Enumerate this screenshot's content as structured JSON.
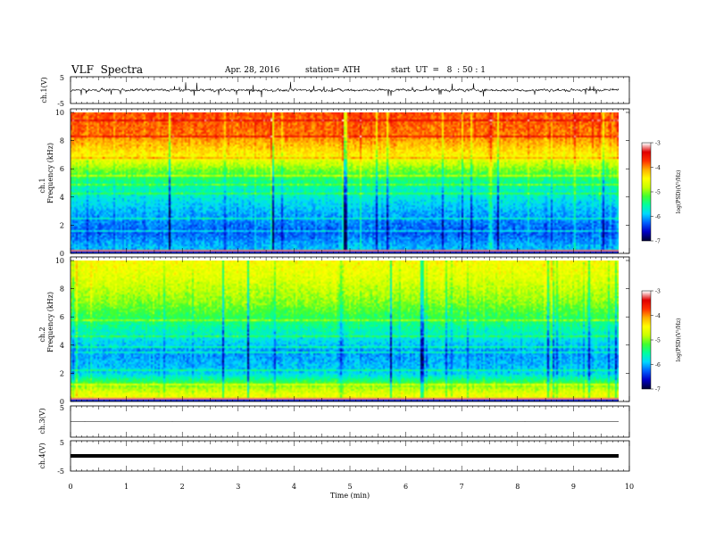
{
  "header": {
    "title": "VLF  Spectra",
    "date": "Apr. 28, 2016",
    "station": "station= ATH",
    "start": "start  UT  =   8  : 50 : 1"
  },
  "colors": {
    "colormap": [
      "#00003a",
      "#0000c8",
      "#0060ff",
      "#00d8ff",
      "#00ffa0",
      "#40ff30",
      "#c8ff00",
      "#ffff00",
      "#ffb000",
      "#ff3000",
      "#e00000",
      "#ffffff"
    ]
  },
  "chart_data": [
    {
      "type": "line",
      "panel": "ch1-waveform",
      "ylabel": "ch.1(V)",
      "ylim": [
        -5,
        5
      ],
      "yticks": [
        "5",
        "-5"
      ],
      "mean": 0.0,
      "amplitude_approx": 1.0
    },
    {
      "type": "heatmap",
      "panel": "ch1-spectrogram",
      "ylabel_top": "ch.1",
      "ylabel": "Frequency  (kHz)",
      "ylim": [
        0,
        10
      ],
      "yticks": [
        "0",
        "2",
        "4",
        "6",
        "8",
        "10"
      ],
      "xlim": [
        0,
        9.83
      ],
      "colorbar": {
        "label": "log(PSD)(V²/Hz)",
        "ticks": [
          "-3",
          "-4",
          "-5",
          "-6",
          "-7"
        ],
        "range": [
          -7,
          -3
        ]
      },
      "mean_level_by_freq_khz": [
        {
          "f": 0.5,
          "level": -6.0
        },
        {
          "f": 1.5,
          "level": -6.3
        },
        {
          "f": 3.0,
          "level": -6.0
        },
        {
          "f": 5.0,
          "level": -5.5
        },
        {
          "f": 6.0,
          "level": -5.0
        },
        {
          "f": 7.0,
          "level": -4.4
        },
        {
          "f": 8.5,
          "level": -3.9
        },
        {
          "f": 10.0,
          "level": -3.8
        }
      ]
    },
    {
      "type": "heatmap",
      "panel": "ch2-spectrogram",
      "ylabel_top": "ch.2",
      "ylabel": "Frequency  (kHz)",
      "ylim": [
        0,
        10
      ],
      "yticks": [
        "0",
        "2",
        "4",
        "6",
        "8",
        "10"
      ],
      "xlim": [
        0,
        9.83
      ],
      "colorbar": {
        "label": "log(PSD)(V²/Hz)",
        "ticks": [
          "-3",
          "-4",
          "-5",
          "-6",
          "-7"
        ],
        "range": [
          -7,
          -3
        ]
      },
      "mean_level_by_freq_khz": [
        {
          "f": 0.5,
          "level": -4.6
        },
        {
          "f": 1.0,
          "level": -4.9
        },
        {
          "f": 2.0,
          "level": -5.9
        },
        {
          "f": 3.5,
          "level": -6.1
        },
        {
          "f": 5.0,
          "level": -5.6
        },
        {
          "f": 7.0,
          "level": -5.0
        },
        {
          "f": 9.0,
          "level": -4.6
        },
        {
          "f": 10.0,
          "level": -4.5
        }
      ]
    },
    {
      "type": "line",
      "panel": "ch3-waveform",
      "ylabel": "ch.3(V)",
      "ylim": [
        -5,
        5
      ],
      "yticks": [
        "5"
      ],
      "mean": 0.0,
      "amplitude_approx": 0.02
    },
    {
      "type": "line",
      "panel": "ch4-waveform",
      "ylabel": "ch.4(V)",
      "ylim": [
        -5,
        5
      ],
      "yticks": [
        "5",
        "-5"
      ],
      "mean": 0.0,
      "amplitude_approx": 0.3
    }
  ],
  "xaxis": {
    "label": "Time  (min)",
    "ticks": [
      "0",
      "1",
      "2",
      "3",
      "4",
      "5",
      "6",
      "7",
      "8",
      "9",
      "10"
    ],
    "range": [
      0,
      10
    ]
  }
}
